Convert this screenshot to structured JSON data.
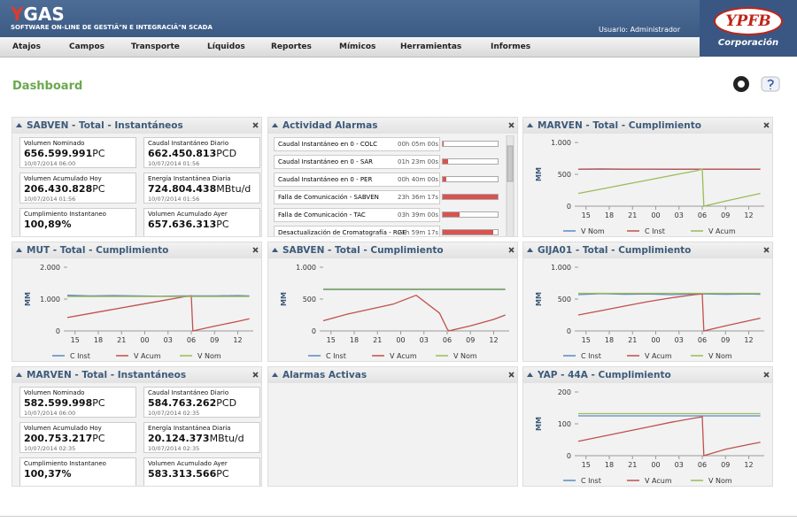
{
  "header": {
    "logo_y": "Y",
    "logo_rest": "GAS",
    "subtitle": "SOFTWARE ON-LINE DE GESTIÃ\"N E INTEGRACIÃ\"N SCADA",
    "user": "Usuario: Administrador",
    "brand": "YPFB",
    "brand_sub": "Corporación"
  },
  "nav": [
    "Atajos",
    "Campos",
    "Transporte",
    "Líquidos",
    "Reportes",
    "Mímicos",
    "Herramientas",
    "Informes"
  ],
  "page_title": "Dashboard",
  "panels": [
    {
      "title": "SABVEN - Total - Instantáneos",
      "items": [
        {
          "label": "Volumen Nominado",
          "value": "656.599.991",
          "unit": "PC",
          "date": "10/07/2014 06:00"
        },
        {
          "label": "Caudal Instantáneo Diario",
          "value": "662.450.813",
          "unit": "PCD",
          "date": "10/07/2014 01:56"
        },
        {
          "label": "Volumen Acumulado Hoy",
          "value": "206.430.828",
          "unit": "PC",
          "date": "10/07/2014 01:56"
        },
        {
          "label": "Energía Instantánea Diaria",
          "value": "724.804.438",
          "unit": "MBtu/d",
          "date": "10/07/2014 01:56"
        },
        {
          "label": "Cumplimiento Instantaneo",
          "value": "100,89%"
        },
        {
          "label": "Volumen Acumulado Ayer",
          "value": "657.636.313",
          "unit": "PC"
        }
      ]
    },
    {
      "title": "Actividad Alarmas",
      "rows": [
        {
          "label": "Caudal Instantáneo en 0 - COLC",
          "time": "00h 05m 00s"
        },
        {
          "label": "Caudal Instantáneo en 0 - SAR",
          "time": "01h 23m 00s"
        },
        {
          "label": "Caudal Instantáneo en 0 - PER",
          "time": "00h 40m 00s"
        },
        {
          "label": "Falla de Comunicación - SABVEN",
          "time": "23h 36m 17s"
        },
        {
          "label": "Falla de Comunicación - TAC",
          "time": "03h 39m 00s"
        },
        {
          "label": "Desactualización de Cromatografía - RGE",
          "time": "21h 59m 17s"
        }
      ]
    },
    {
      "title": "MARVEN - Total - Cumplimiento",
      "chart_data": {
        "type": "line",
        "y_label": "MM",
        "x": [
          14,
          17,
          20,
          23,
          26,
          29,
          30,
          30.2,
          33,
          36,
          37.5
        ],
        "xlim": [
          14,
          38
        ],
        "xticks": [
          15,
          18,
          21,
          {
            "value": 24,
            "label": "00"
          },
          {
            "value": 27,
            "label": "03"
          },
          {
            "value": 30,
            "label": "06"
          },
          {
            "value": 33,
            "label": "09"
          },
          {
            "value": 36,
            "label": "12"
          }
        ],
        "ylim": [
          0,
          1000
        ],
        "yticks": [
          0,
          500,
          {
            "value": 1000,
            "label": "1.000"
          }
        ],
        "series": [
          {
            "name": "V Nom",
            "color": "#5b8ac0",
            "values": [
              580,
              580,
              580,
              580,
              580,
              580,
              580,
              580,
              580,
              580,
              580
            ]
          },
          {
            "name": "C Inst",
            "color": "#c0504d",
            "values": [
              580,
              585,
              580,
              582,
              578,
              580,
              580,
              582,
              580,
              578,
              580
            ]
          },
          {
            "name": "V Acum",
            "color": "#9bbb59",
            "values": [
              200,
              270,
              340,
              410,
              480,
              550,
              580,
              0,
              80,
              160,
              200
            ]
          }
        ]
      }
    },
    {
      "title": "MUT - Total - Cumplimiento",
      "chart_data": {
        "type": "line",
        "y_label": "MM",
        "x": [
          14,
          17,
          20,
          23,
          26,
          29,
          30,
          30.2,
          33,
          36,
          37.5
        ],
        "xlim": [
          14,
          38
        ],
        "xticks": [
          15,
          18,
          21,
          {
            "value": 24,
            "label": "00"
          },
          {
            "value": 27,
            "label": "03"
          },
          {
            "value": 30,
            "label": "06"
          },
          {
            "value": 33,
            "label": "09"
          },
          {
            "value": 36,
            "label": "12"
          }
        ],
        "ylim": [
          0,
          2000
        ],
        "yticks": [
          0,
          {
            "value": 1000,
            "label": "1.000"
          },
          {
            "value": 2000,
            "label": "2.000"
          }
        ],
        "series": [
          {
            "name": "C Inst",
            "color": "#5b8ac0",
            "values": [
              1120,
              1100,
              1110,
              1100,
              1090,
              1100,
              1100,
              1100,
              1100,
              1110,
              1100
            ]
          },
          {
            "name": "V Acum",
            "color": "#c0504d",
            "values": [
              420,
              550,
              680,
              810,
              940,
              1070,
              1100,
              0,
              150,
              300,
              380
            ]
          },
          {
            "name": "V Nom",
            "color": "#9bbb59",
            "values": [
              1080,
              1080,
              1080,
              1080,
              1080,
              1080,
              1080,
              1080,
              1080,
              1080,
              1080
            ]
          }
        ]
      }
    },
    {
      "title": "SABVEN - Total - Cumplimiento",
      "chart_data": {
        "type": "line",
        "y_label": "MM",
        "x": [
          14,
          17,
          20,
          23,
          26,
          29,
          30,
          30.2,
          33,
          36,
          37.5
        ],
        "xlim": [
          14,
          38
        ],
        "xticks": [
          15,
          18,
          21,
          {
            "value": 24,
            "label": "00"
          },
          {
            "value": 27,
            "label": "03"
          },
          {
            "value": 30,
            "label": "06"
          },
          {
            "value": 33,
            "label": "09"
          },
          {
            "value": 36,
            "label": "12"
          }
        ],
        "ylim": [
          0,
          1000
        ],
        "yticks": [
          0,
          500,
          {
            "value": 1000,
            "label": "1.000"
          }
        ],
        "series": [
          {
            "name": "C Inst",
            "color": "#5b8ac0",
            "values": [
              650,
              650,
              650,
              650,
              650,
              650,
              650,
              650,
              650,
              650,
              650
            ]
          },
          {
            "name": "V Acum",
            "color": "#c0504d",
            "values": [
              160,
              260,
              340,
              420,
              560,
              280,
              30,
              0,
              80,
              180,
              250
            ]
          },
          {
            "name": "V Nom",
            "color": "#9bbb59",
            "values": [
              660,
              660,
              660,
              660,
              660,
              660,
              660,
              660,
              660,
              660,
              660
            ]
          }
        ]
      }
    },
    {
      "title": "GIJA01 - Total - Cumplimiento",
      "chart_data": {
        "type": "line",
        "y_label": "MM",
        "x": [
          14,
          17,
          20,
          23,
          26,
          29,
          30,
          30.2,
          33,
          36,
          37.5
        ],
        "xlim": [
          14,
          38
        ],
        "xticks": [
          15,
          18,
          21,
          {
            "value": 24,
            "label": "00"
          },
          {
            "value": 27,
            "label": "03"
          },
          {
            "value": 30,
            "label": "06"
          },
          {
            "value": 33,
            "label": "09"
          },
          {
            "value": 36,
            "label": "12"
          }
        ],
        "ylim": [
          0,
          1000
        ],
        "yticks": [
          0,
          500,
          {
            "value": 1000,
            "label": "1.000"
          }
        ],
        "series": [
          {
            "name": "C Inst",
            "color": "#5b8ac0",
            "values": [
              570,
              585,
              575,
              580,
              570,
              580,
              580,
              580,
              575,
              580,
              575
            ]
          },
          {
            "name": "V Acum",
            "color": "#c0504d",
            "values": [
              250,
              320,
              390,
              460,
              520,
              570,
              580,
              0,
              80,
              160,
              200
            ]
          },
          {
            "name": "V Nom",
            "color": "#9bbb59",
            "values": [
              590,
              590,
              590,
              590,
              590,
              590,
              590,
              590,
              590,
              590,
              590
            ]
          }
        ]
      }
    },
    {
      "title": "MARVEN - Total - Instantáneos",
      "items": [
        {
          "label": "Volumen Nominado",
          "value": "582.599.998",
          "unit": "PC",
          "date": "10/07/2014 06:00"
        },
        {
          "label": "Caudal Instantáneo Diario",
          "value": "584.763.262",
          "unit": "PCD",
          "date": "10/07/2014 02:35"
        },
        {
          "label": "Volumen Acumulado Hoy",
          "value": "200.753.217",
          "unit": "PC",
          "date": "10/07/2014 02:35"
        },
        {
          "label": "Energía Instantánea Diaria",
          "value": "20.124.373",
          "unit": "MBtu/d",
          "date": "10/07/2014 02:35"
        },
        {
          "label": "Cumplimiento Instantaneo",
          "value": "100,37%"
        },
        {
          "label": "Volumen Acumulado Ayer",
          "value": "583.313.566",
          "unit": "PC"
        }
      ]
    },
    {
      "title": "Alarmas Activas"
    },
    {
      "title": "YAP - 44A - Cumplimiento",
      "chart_data": {
        "type": "line",
        "y_label": "MM",
        "x": [
          14,
          17,
          20,
          23,
          26,
          29,
          30,
          30.2,
          33,
          36,
          37.5
        ],
        "xlim": [
          14,
          38
        ],
        "xticks": [
          15,
          18,
          21,
          {
            "value": 24,
            "label": "00"
          },
          {
            "value": 27,
            "label": "03"
          },
          {
            "value": 30,
            "label": "06"
          },
          {
            "value": 33,
            "label": "09"
          },
          {
            "value": 36,
            "label": "12"
          }
        ],
        "ylim": [
          0,
          200
        ],
        "yticks": [
          0,
          100,
          200
        ],
        "series": [
          {
            "name": "C Inst",
            "color": "#5b8ac0",
            "values": [
              125,
              125,
              125,
              125,
              125,
              125,
              125,
              125,
              125,
              125,
              125
            ]
          },
          {
            "name": "V Acum",
            "color": "#c0504d",
            "values": [
              45,
              60,
              75,
              90,
              105,
              118,
              122,
              0,
              20,
              35,
              42
            ]
          },
          {
            "name": "V Nom",
            "color": "#9bbb59",
            "values": [
              132,
              132,
              132,
              132,
              132,
              132,
              132,
              132,
              132,
              132,
              132
            ]
          }
        ]
      }
    }
  ]
}
